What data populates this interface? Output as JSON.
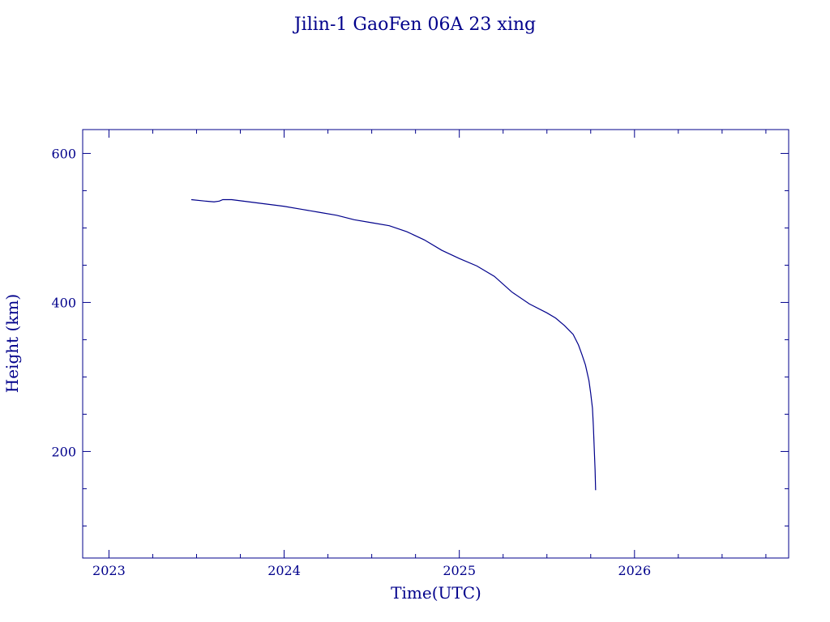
{
  "chart_data": {
    "type": "line",
    "title": "Jilin-1 GaoFen 06A 23 xing",
    "xlabel": "Time(UTC)",
    "ylabel": "Height (km)",
    "xlim": [
      2022.85,
      2026.88
    ],
    "ylim": [
      57,
      632
    ],
    "x_ticks": [
      {
        "value": 2023,
        "label": "2023"
      },
      {
        "value": 2024,
        "label": "2024"
      },
      {
        "value": 2025,
        "label": "2025"
      },
      {
        "value": 2026,
        "label": "2026"
      }
    ],
    "x_minor_step": 0.25,
    "y_ticks": [
      {
        "value": 200,
        "label": "200"
      },
      {
        "value": 400,
        "label": "400"
      },
      {
        "value": 600,
        "label": "600"
      }
    ],
    "y_minor_step": 50,
    "grid": false,
    "color": "#00008b",
    "series": [
      {
        "x": [
          2023.47,
          2023.55,
          2023.6,
          2023.63,
          2023.65,
          2023.7,
          2023.8,
          2023.9,
          2024.0,
          2024.1,
          2024.2,
          2024.3,
          2024.4,
          2024.5,
          2024.6,
          2024.7,
          2024.8,
          2024.9,
          2025.0,
          2025.1,
          2025.2,
          2025.3,
          2025.4,
          2025.5,
          2025.55,
          2025.6,
          2025.65,
          2025.68,
          2025.7,
          2025.72,
          2025.74,
          2025.75,
          2025.76,
          2025.765,
          2025.77,
          2025.775,
          2025.778
        ],
        "y": [
          538,
          536,
          535,
          536,
          538,
          538,
          535,
          532,
          529,
          525,
          521,
          517,
          511,
          507,
          503,
          495,
          484,
          470,
          459,
          449,
          435,
          414,
          398,
          386,
          379,
          369,
          357,
          343,
          330,
          316,
          295,
          278,
          258,
          235,
          205,
          175,
          148
        ]
      }
    ]
  }
}
